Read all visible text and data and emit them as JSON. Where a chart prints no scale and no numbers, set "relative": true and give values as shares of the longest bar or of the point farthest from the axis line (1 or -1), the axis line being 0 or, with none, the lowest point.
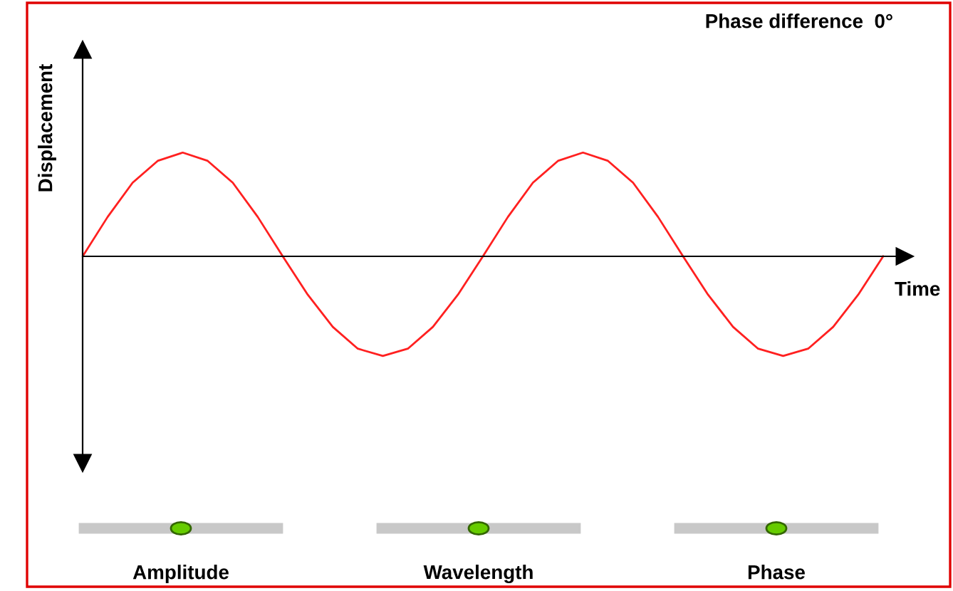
{
  "chart_data": {
    "type": "line",
    "relative": true,
    "title": "Phase difference  0°",
    "xlabel": "Time",
    "ylabel": "Displacement",
    "categories": [
      null,
      null,
      null,
      null,
      null,
      null,
      null,
      null,
      null,
      null,
      null,
      null,
      null,
      null,
      null,
      null,
      null,
      null,
      null,
      null,
      null,
      null,
      null,
      null,
      null,
      null,
      null,
      null,
      null,
      null,
      null,
      null,
      null
    ],
    "values": [
      0,
      0.38,
      0.71,
      0.92,
      1,
      0.92,
      0.71,
      0.38,
      0,
      -0.37,
      -0.68,
      -0.89,
      -0.96,
      -0.89,
      -0.68,
      -0.37,
      0,
      0.38,
      0.71,
      0.92,
      1,
      0.92,
      0.71,
      0.38,
      0,
      -0.37,
      -0.68,
      -0.89,
      -0.96,
      -0.89,
      -0.68,
      -0.37,
      0
    ],
    "color": "#ff2020",
    "annotations": [
      "Amplitude",
      "Wavelength",
      "Phase"
    ]
  }
}
